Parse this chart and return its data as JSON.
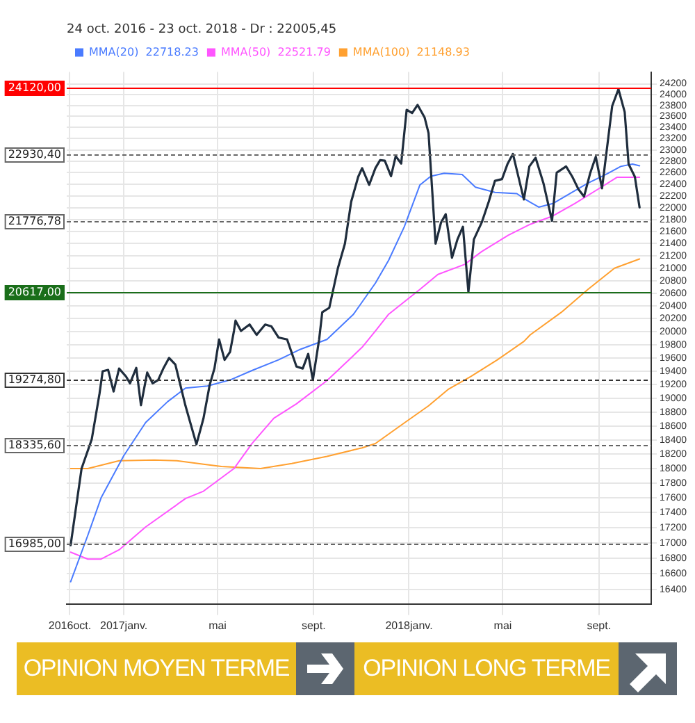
{
  "chart_data": {
    "type": "line",
    "title": "24 oct. 2016 - 23 oct. 2018 - Dr : 22005,45",
    "log": "y",
    "grid": true,
    "legend": "top left",
    "marker": "none",
    "line_style": "solid",
    "xlim": [
      "2016-10-20",
      "2018-11-07"
    ],
    "ylim": [
      16220,
      24420
    ],
    "xticks": [
      {
        "value": "2016-10-24",
        "label": "2016oct."
      },
      {
        "value": "2017-01-01",
        "label": "2017janv."
      },
      {
        "value": "2017-05-01",
        "label": "mai"
      },
      {
        "value": "2017-09-01",
        "label": "sept."
      },
      {
        "value": "2018-01-01",
        "label": "2018janv."
      },
      {
        "value": "2018-05-01",
        "label": "mai"
      },
      {
        "value": "2018-09-01",
        "label": "sept."
      }
    ],
    "yticks": [
      16400,
      16600,
      16800,
      17000,
      17200,
      17400,
      17600,
      17800,
      18000,
      18200,
      18400,
      18600,
      18800,
      19000,
      19200,
      19400,
      19600,
      19800,
      20000,
      20200,
      20400,
      20600,
      20800,
      21000,
      21200,
      21400,
      21600,
      21800,
      22000,
      22200,
      22400,
      22600,
      22800,
      23000,
      23200,
      23400,
      23600,
      23800,
      24000,
      24200
    ],
    "series": [
      {
        "color": "#1f2d3d",
        "x": [
          "2016-10-25",
          "2016-11-08",
          "2016-11-21",
          "2016-12-01",
          "2016-12-05",
          "2016-12-12",
          "2016-12-19",
          "2016-12-26",
          "2017-01-04",
          "2017-01-09",
          "2017-01-17",
          "2017-01-23",
          "2017-01-31",
          "2017-02-07",
          "2017-02-14",
          "2017-02-21",
          "2017-02-28",
          "2017-03-08",
          "2017-03-21",
          "2017-04-04",
          "2017-04-13",
          "2017-04-21",
          "2017-04-27",
          "2017-05-03",
          "2017-05-10",
          "2017-05-17",
          "2017-05-22",
          "2017-05-24",
          "2017-05-31",
          "2017-06-11",
          "2017-06-20",
          "2017-07-01",
          "2017-07-09",
          "2017-07-18",
          "2017-07-29",
          "2017-08-10",
          "2017-08-18",
          "2017-08-25",
          "2017-08-31",
          "2017-09-08",
          "2017-09-12",
          "2017-09-21",
          "2017-10-02",
          "2017-10-11",
          "2017-10-19",
          "2017-10-28",
          "2017-11-02",
          "2017-11-11",
          "2017-11-19",
          "2017-11-25",
          "2017-12-01",
          "2017-12-09",
          "2017-12-15",
          "2017-12-22",
          "2017-12-29",
          "2018-01-05",
          "2018-01-12",
          "2018-01-21",
          "2018-01-26",
          "2018-02-04",
          "2018-02-11",
          "2018-02-17",
          "2018-02-25",
          "2018-03-04",
          "2018-03-11",
          "2018-03-18",
          "2018-03-25",
          "2018-04-04",
          "2018-04-13",
          "2018-04-21",
          "2018-04-30",
          "2018-05-07",
          "2018-05-14",
          "2018-05-21",
          "2018-05-28",
          "2018-06-04",
          "2018-06-12",
          "2018-06-22",
          "2018-07-03",
          "2018-07-09",
          "2018-07-21",
          "2018-07-29",
          "2018-08-06",
          "2018-08-13",
          "2018-08-21",
          "2018-08-28",
          "2018-09-05",
          "2018-09-18",
          "2018-09-26",
          "2018-10-04",
          "2018-10-09",
          "2018-10-17",
          "2018-10-23"
        ],
        "values": [
          16970,
          18000,
          18410,
          19070,
          19400,
          19420,
          19100,
          19440,
          19320,
          19220,
          19450,
          18900,
          19380,
          19220,
          19270,
          19450,
          19600,
          19500,
          18890,
          18340,
          18710,
          19200,
          19440,
          19880,
          19570,
          19690,
          20010,
          20170,
          20010,
          20110,
          19950,
          20110,
          20080,
          19910,
          19880,
          19470,
          19440,
          19660,
          19270,
          19880,
          20300,
          20370,
          21000,
          21400,
          22100,
          22530,
          22680,
          22390,
          22680,
          22820,
          22810,
          22540,
          22890,
          22760,
          23720,
          23660,
          23810,
          23580,
          23300,
          21400,
          21750,
          21890,
          21170,
          21470,
          21680,
          20620,
          21470,
          21750,
          22100,
          22460,
          22490,
          22750,
          22930,
          22530,
          22140,
          22710,
          22860,
          22420,
          21780,
          22600,
          22710,
          22530,
          22310,
          22190,
          22600,
          22880,
          22330,
          23790,
          24100,
          23680,
          22750,
          22530,
          22005
        ]
      },
      {
        "name": "MMA(20)  22718.23",
        "color": "#4a7bff",
        "x": [
          "2016-10-25",
          "2016-11-16",
          "2016-12-03",
          "2017-01-01",
          "2017-01-29",
          "2017-02-26",
          "2017-03-21",
          "2017-04-18",
          "2017-05-17",
          "2017-06-14",
          "2017-07-18",
          "2017-08-15",
          "2017-09-18",
          "2017-10-22",
          "2017-11-19",
          "2017-12-06",
          "2017-12-26",
          "2018-01-15",
          "2018-01-29",
          "2018-02-15",
          "2018-03-10",
          "2018-03-27",
          "2018-04-21",
          "2018-05-19",
          "2018-05-30",
          "2018-06-16",
          "2018-07-04",
          "2018-07-26",
          "2018-08-18",
          "2018-09-10",
          "2018-09-29",
          "2018-10-14",
          "2018-10-23"
        ],
        "values": [
          16500,
          17100,
          17600,
          18180,
          18650,
          18950,
          19150,
          19180,
          19270,
          19410,
          19570,
          19730,
          19880,
          20270,
          20760,
          21130,
          21680,
          22390,
          22540,
          22590,
          22570,
          22350,
          22260,
          22240,
          22140,
          22010,
          22070,
          22240,
          22420,
          22570,
          22710,
          22750,
          22720
        ]
      },
      {
        "name": "MMA(50)  22521.79",
        "color": "#ff55ff",
        "x": [
          "2016-10-25",
          "2016-11-16",
          "2016-12-03",
          "2016-12-26",
          "2017-01-29",
          "2017-03-21",
          "2017-04-13",
          "2017-05-22",
          "2017-06-14",
          "2017-07-12",
          "2017-08-10",
          "2017-09-18",
          "2017-11-02",
          "2017-11-19",
          "2017-12-06",
          "2018-01-15",
          "2018-02-07",
          "2018-03-13",
          "2018-04-04",
          "2018-05-08",
          "2018-06-05",
          "2018-07-04",
          "2018-08-01",
          "2018-09-04",
          "2018-09-24",
          "2018-10-23"
        ],
        "values": [
          16880,
          16790,
          16790,
          16910,
          17210,
          17590,
          17690,
          18000,
          18350,
          18710,
          18920,
          19260,
          19760,
          20010,
          20270,
          20660,
          20900,
          21060,
          21270,
          21540,
          21720,
          21860,
          22070,
          22350,
          22520,
          22520
        ]
      },
      {
        "name": "MMA(100)  21148.93",
        "color": "#ffa030",
        "x": [
          "2016-10-25",
          "2016-11-16",
          "2016-12-26",
          "2017-02-09",
          "2017-03-10",
          "2017-04-13",
          "2017-05-06",
          "2017-06-25",
          "2017-08-04",
          "2017-09-18",
          "2017-11-02",
          "2017-11-19",
          "2017-12-23",
          "2018-01-26",
          "2018-02-20",
          "2018-03-21",
          "2018-04-24",
          "2018-05-28",
          "2018-06-05",
          "2018-07-15",
          "2018-08-18",
          "2018-09-21",
          "2018-10-23"
        ],
        "values": [
          18000,
          18000,
          18110,
          18120,
          18110,
          18060,
          18030,
          18000,
          18070,
          18170,
          18290,
          18350,
          18620,
          18890,
          19130,
          19320,
          19570,
          19850,
          19950,
          20300,
          20660,
          21000,
          21150
        ]
      }
    ],
    "ref_lines": [
      {
        "axis": "y",
        "value": 24120,
        "label": "24120,00",
        "color": "#ff0000",
        "line_style": "solid"
      },
      {
        "axis": "y",
        "value": 22930.4,
        "label": "22930,40",
        "color": "#666666",
        "line_style": "dotted"
      },
      {
        "axis": "y",
        "value": 21776.78,
        "label": "21776,78",
        "color": "#666666",
        "line_style": "dotted"
      },
      {
        "axis": "y",
        "value": 20617,
        "label": "20617,00",
        "color": "#1a6e1a",
        "line_style": "solid"
      },
      {
        "axis": "y",
        "value": 19274.8,
        "label": "19274,80",
        "color": "#333333",
        "line_style": "dotted"
      },
      {
        "axis": "y",
        "value": 18335.6,
        "label": "18335,60",
        "color": "#666666",
        "line_style": "dotted"
      },
      {
        "axis": "y",
        "value": 16985,
        "label": "16985,00",
        "color": "#666666",
        "line_style": "dotted"
      }
    ],
    "annotations": [
      "OPINION MOYEN TERME",
      "OPINION LONG TERME"
    ]
  }
}
